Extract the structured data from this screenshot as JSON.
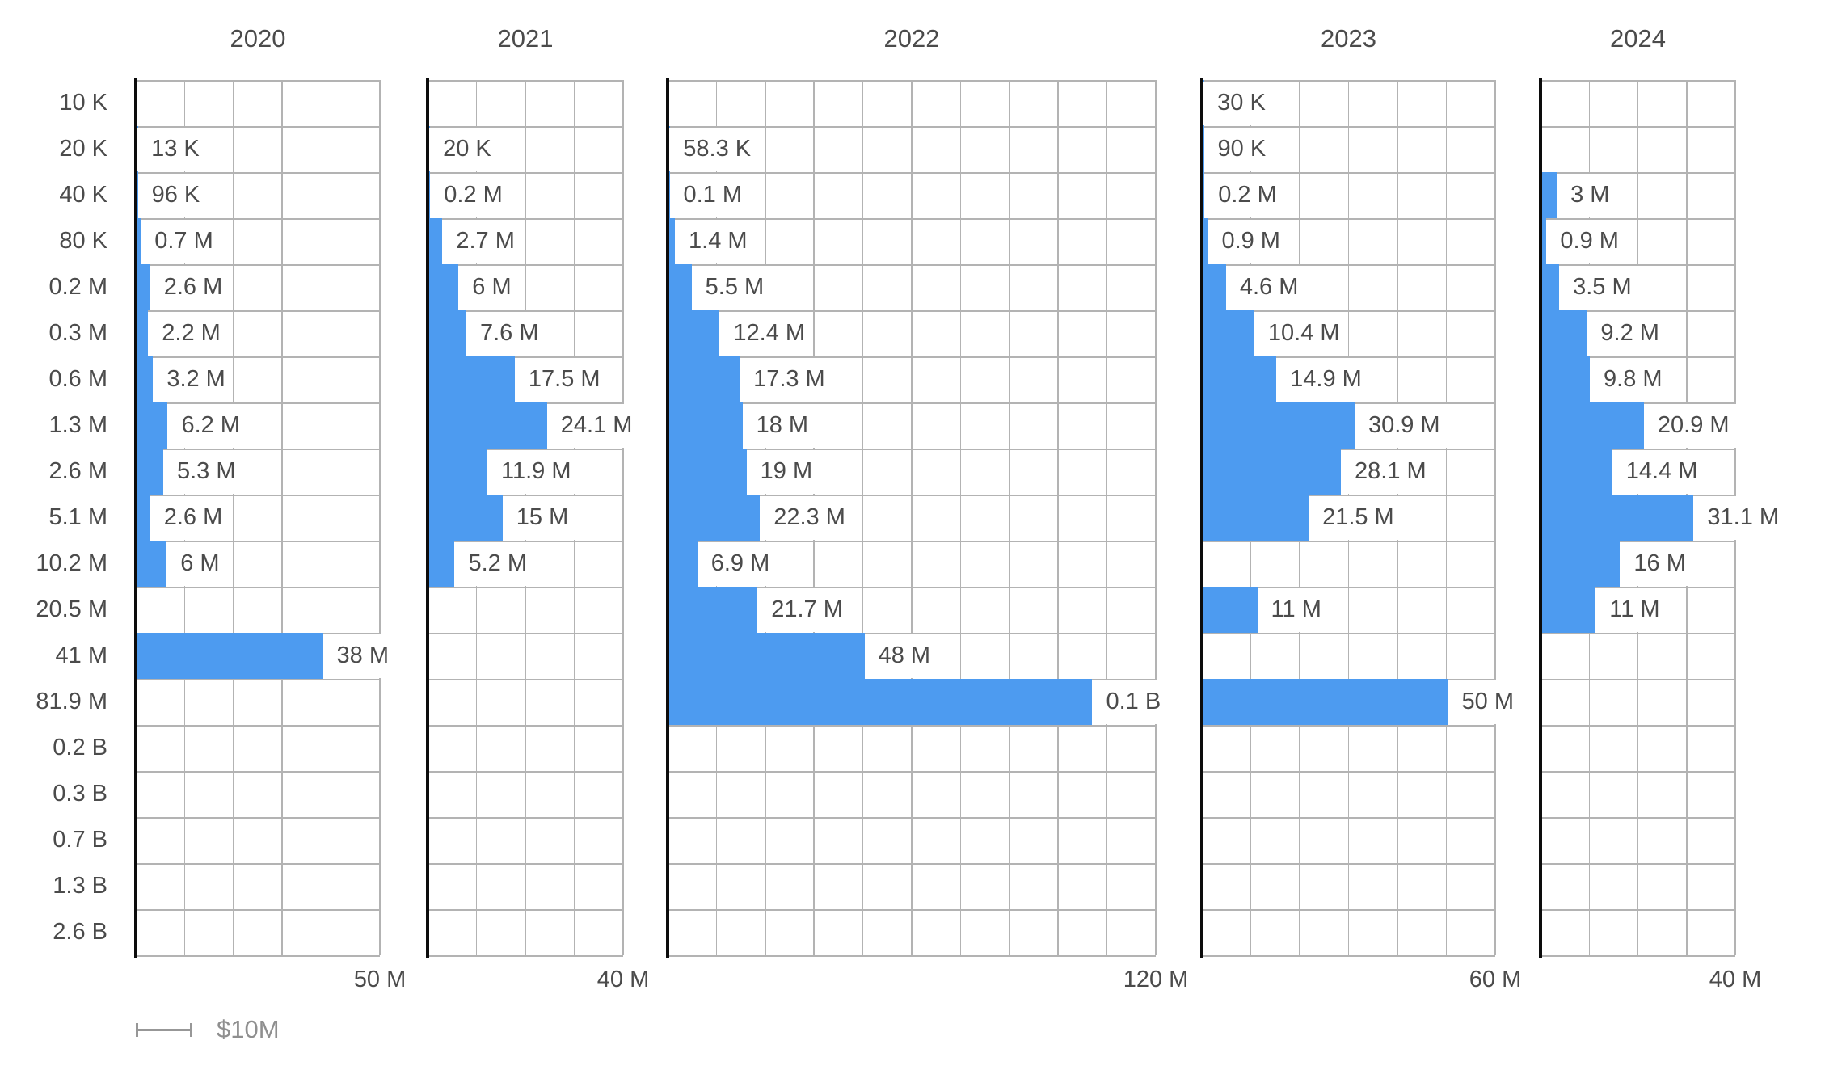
{
  "colors": {
    "bar": "#4d9bf0",
    "gridline": "#b3b3b3",
    "axis_spine": "#0c0c0c",
    "text": "#4b4b4b",
    "legend_text": "#8f8f8f"
  },
  "legend": {
    "label": "$10M"
  },
  "chart_data": {
    "type": "bar",
    "orientation": "horizontal",
    "grid": true,
    "row_labels": [
      "10 K",
      "20 K",
      "40 K",
      "80 K",
      "0.2 M",
      "0.3 M",
      "0.6 M",
      "1.3 M",
      "2.6 M",
      "5.1 M",
      "10.2 M",
      "20.5 M",
      "41 M",
      "81.9 M",
      "0.2 B",
      "0.3 B",
      "0.7 B",
      "1.3 B",
      "2.6 B"
    ],
    "scale_legend": "$10M",
    "panels": [
      {
        "title": "2020",
        "axis_max_label": "50 M",
        "axis_max_m": 50,
        "divisions": 5,
        "bars": [
          {
            "row": "20 K",
            "label": "13 K",
            "value_m": 0.013
          },
          {
            "row": "40 K",
            "label": "96 K",
            "value_m": 0.096
          },
          {
            "row": "80 K",
            "label": "0.7 M",
            "value_m": 0.7
          },
          {
            "row": "0.2 M",
            "label": "2.6 M",
            "value_m": 2.6
          },
          {
            "row": "0.3 M",
            "label": "2.2 M",
            "value_m": 2.2
          },
          {
            "row": "0.6 M",
            "label": "3.2 M",
            "value_m": 3.2
          },
          {
            "row": "1.3 M",
            "label": "6.2 M",
            "value_m": 6.2
          },
          {
            "row": "2.6 M",
            "label": "5.3 M",
            "value_m": 5.3
          },
          {
            "row": "5.1 M",
            "label": "2.6 M",
            "value_m": 2.6
          },
          {
            "row": "10.2 M",
            "label": "6 M",
            "value_m": 6
          },
          {
            "row": "41 M",
            "label": "38 M",
            "value_m": 38
          }
        ]
      },
      {
        "title": "2021",
        "axis_max_label": "40 M",
        "axis_max_m": 40,
        "divisions": 4,
        "bars": [
          {
            "row": "20 K",
            "label": "20 K",
            "value_m": 0.02
          },
          {
            "row": "40 K",
            "label": "0.2 M",
            "value_m": 0.2
          },
          {
            "row": "80 K",
            "label": "2.7 M",
            "value_m": 2.7
          },
          {
            "row": "0.2 M",
            "label": "6 M",
            "value_m": 6
          },
          {
            "row": "0.3 M",
            "label": "7.6 M",
            "value_m": 7.6
          },
          {
            "row": "0.6 M",
            "label": "17.5 M",
            "value_m": 17.5
          },
          {
            "row": "1.3 M",
            "label": "24.1 M",
            "value_m": 24.1
          },
          {
            "row": "2.6 M",
            "label": "11.9 M",
            "value_m": 11.9
          },
          {
            "row": "5.1 M",
            "label": "15 M",
            "value_m": 15
          },
          {
            "row": "10.2 M",
            "label": "5.2 M",
            "value_m": 5.2
          }
        ]
      },
      {
        "title": "2022",
        "axis_max_label": "120 M",
        "axis_max_m": 120,
        "divisions": 10,
        "bars": [
          {
            "row": "20 K",
            "label": "58.3 K",
            "value_m": 0.0583
          },
          {
            "row": "40 K",
            "label": "0.1 M",
            "value_m": 0.1
          },
          {
            "row": "80 K",
            "label": "1.4 M",
            "value_m": 1.4
          },
          {
            "row": "0.2 M",
            "label": "5.5 M",
            "value_m": 5.5
          },
          {
            "row": "0.3 M",
            "label": "12.4 M",
            "value_m": 12.4
          },
          {
            "row": "0.6 M",
            "label": "17.3 M",
            "value_m": 17.3
          },
          {
            "row": "1.3 M",
            "label": "18 M",
            "value_m": 18
          },
          {
            "row": "2.6 M",
            "label": "19 M",
            "value_m": 19
          },
          {
            "row": "5.1 M",
            "label": "22.3 M",
            "value_m": 22.3
          },
          {
            "row": "10.2 M",
            "label": "6.9 M",
            "value_m": 6.9
          },
          {
            "row": "20.5 M",
            "label": "21.7 M",
            "value_m": 21.7
          },
          {
            "row": "41 M",
            "label": "48 M",
            "value_m": 48
          },
          {
            "row": "81.9 M",
            "label": "0.1 B",
            "value_m": 104
          }
        ]
      },
      {
        "title": "2023",
        "axis_max_label": "60 M",
        "axis_max_m": 60,
        "divisions": 6,
        "bars": [
          {
            "row": "10 K",
            "label": "30 K",
            "value_m": 0.03
          },
          {
            "row": "20 K",
            "label": "90 K",
            "value_m": 0.09
          },
          {
            "row": "40 K",
            "label": "0.2 M",
            "value_m": 0.2
          },
          {
            "row": "80 K",
            "label": "0.9 M",
            "value_m": 0.9
          },
          {
            "row": "0.2 M",
            "label": "4.6 M",
            "value_m": 4.6
          },
          {
            "row": "0.3 M",
            "label": "10.4 M",
            "value_m": 10.4
          },
          {
            "row": "0.6 M",
            "label": "14.9 M",
            "value_m": 14.9
          },
          {
            "row": "1.3 M",
            "label": "30.9 M",
            "value_m": 30.9
          },
          {
            "row": "2.6 M",
            "label": "28.1 M",
            "value_m": 28.1
          },
          {
            "row": "5.1 M",
            "label": "21.5 M",
            "value_m": 21.5
          },
          {
            "row": "20.5 M",
            "label": "11 M",
            "value_m": 11
          },
          {
            "row": "81.9 M",
            "label": "50 M",
            "value_m": 50
          }
        ]
      },
      {
        "title": "2024",
        "axis_max_label": "40 M",
        "axis_max_m": 40,
        "divisions": 4,
        "bars": [
          {
            "row": "40 K",
            "label": "3 M",
            "value_m": 3
          },
          {
            "row": "80 K",
            "label": "0.9 M",
            "value_m": 0.9
          },
          {
            "row": "0.2 M",
            "label": "3.5 M",
            "value_m": 3.5
          },
          {
            "row": "0.3 M",
            "label": "9.2 M",
            "value_m": 9.2
          },
          {
            "row": "0.6 M",
            "label": "9.8 M",
            "value_m": 9.8
          },
          {
            "row": "1.3 M",
            "label": "20.9 M",
            "value_m": 20.9
          },
          {
            "row": "2.6 M",
            "label": "14.4 M",
            "value_m": 14.4
          },
          {
            "row": "5.1 M",
            "label": "31.1 M",
            "value_m": 31.1
          },
          {
            "row": "10.2 M",
            "label": "16 M",
            "value_m": 16
          },
          {
            "row": "20.5 M",
            "label": "11 M",
            "value_m": 11
          }
        ]
      }
    ]
  }
}
